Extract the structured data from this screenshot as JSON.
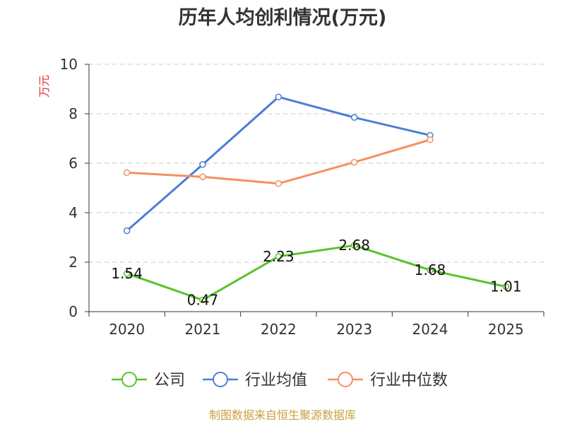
{
  "chart_data": {
    "type": "line",
    "title": "历年人均创利情况(万元)",
    "ylabel": "万元",
    "xlabel": "",
    "categories": [
      "2020",
      "2021",
      "2022",
      "2023",
      "2024",
      "2025"
    ],
    "ylim": [
      0,
      10
    ],
    "yticks": [
      "0",
      "2",
      "4",
      "6",
      "8",
      "10"
    ],
    "grid": true,
    "legend_position": "bottom",
    "series": [
      {
        "name": "公司",
        "color": "#5ac229",
        "values": [
          1.54,
          0.47,
          2.23,
          2.68,
          1.68,
          1.01
        ],
        "labels": [
          "1.54",
          "0.47",
          "2.23",
          "2.68",
          "1.68",
          "1.01"
        ]
      },
      {
        "name": "行业均值",
        "color": "#4a7fd8",
        "values": [
          3.27,
          5.95,
          8.68,
          7.85,
          7.13,
          null
        ]
      },
      {
        "name": "行业中位数",
        "color": "#f59060",
        "values": [
          5.62,
          5.45,
          5.18,
          6.04,
          6.95,
          null
        ]
      }
    ]
  },
  "source_text": "制图数据来自恒生聚源数据库"
}
